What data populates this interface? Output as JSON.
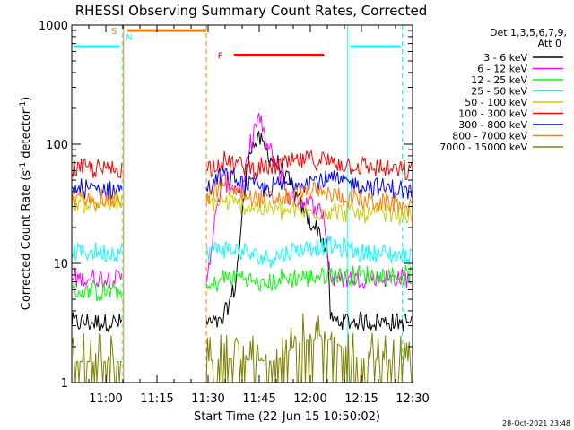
{
  "chart_data": {
    "type": "line",
    "title": "RHESSI Observing Summary Count Rates, Corrected",
    "xlabel": "Start Time (22-Jun-15 10:50:02)",
    "ylabel_main": "Corrected Count Rate (s",
    "ylabel_sup1": "-1",
    "ylabel_mid": " detector",
    "ylabel_sup2": "-1",
    "ylabel_end": ")",
    "yscale": "log",
    "ylim": [
      1,
      1000
    ],
    "xlim_min": [
      0,
      100
    ],
    "xticks": [
      {
        "t": 10,
        "label": "11:00"
      },
      {
        "t": 25,
        "label": "11:15"
      },
      {
        "t": 40,
        "label": "11:30"
      },
      {
        "t": 55,
        "label": "11:45"
      },
      {
        "t": 70,
        "label": "12:00"
      },
      {
        "t": 85,
        "label": "12:15"
      },
      {
        "t": 100,
        "label": "12:30"
      }
    ],
    "yticks": [
      {
        "v": 1,
        "label": "1"
      },
      {
        "v": 10,
        "label": "10"
      },
      {
        "v": 100,
        "label": "100"
      },
      {
        "v": 1000,
        "label": "1000"
      }
    ],
    "legend_title_1": "Det 1,3,5,6,7,9,",
    "legend_title_2": "Att 0",
    "series": [
      {
        "name": "3 - 6 keV",
        "color": "#000000",
        "values": [
          [
            0,
            3.2
          ],
          [
            14.8,
            3.2
          ],
          [
            39.5,
            3.2
          ],
          [
            44,
            3.1
          ],
          [
            48,
            6.5
          ],
          [
            52,
            90
          ],
          [
            55,
            110
          ],
          [
            58,
            80
          ],
          [
            62,
            60
          ],
          [
            66,
            35
          ],
          [
            70,
            22
          ],
          [
            73,
            18
          ],
          [
            75,
            12
          ],
          [
            76,
            3.3
          ],
          [
            100,
            3.2
          ]
        ]
      },
      {
        "name": "6 - 12 keV",
        "color": "#ff00ff",
        "values": [
          [
            0,
            7.5
          ],
          [
            14.8,
            7.5
          ],
          [
            39.5,
            7.5
          ],
          [
            44,
            50
          ],
          [
            47,
            45
          ],
          [
            50,
            40
          ],
          [
            53,
            120
          ],
          [
            55,
            170
          ],
          [
            57,
            100
          ],
          [
            60,
            70
          ],
          [
            64,
            35
          ],
          [
            68,
            33
          ],
          [
            72,
            30
          ],
          [
            74,
            25
          ],
          [
            76,
            7.5
          ],
          [
            100,
            7.5
          ]
        ]
      },
      {
        "name": "12 - 25 keV",
        "color": "#00ff00",
        "values": [
          [
            0,
            5.8
          ],
          [
            14.8,
            5.8
          ],
          [
            39.5,
            5.8
          ],
          [
            44,
            7.5
          ],
          [
            50,
            7.8
          ],
          [
            56,
            6.5
          ],
          [
            62,
            7.5
          ],
          [
            70,
            7.7
          ],
          [
            76,
            8
          ],
          [
            100,
            7.8
          ]
        ]
      },
      {
        "name": "25 - 50 keV",
        "color": "#00ffff",
        "values": [
          [
            0,
            12.5
          ],
          [
            14.8,
            12.5
          ],
          [
            39.5,
            12.5
          ],
          [
            44,
            13.5
          ],
          [
            50,
            12.5
          ],
          [
            56,
            11
          ],
          [
            62,
            12
          ],
          [
            70,
            14
          ],
          [
            76,
            14
          ],
          [
            84,
            12.5
          ],
          [
            100,
            11.5
          ]
        ]
      },
      {
        "name": "50 - 100 keV",
        "color": "#cccc00",
        "values": [
          [
            0,
            32
          ],
          [
            14.8,
            32
          ],
          [
            39.5,
            32
          ],
          [
            44,
            33
          ],
          [
            52,
            30
          ],
          [
            60,
            28
          ],
          [
            68,
            27
          ],
          [
            76,
            28
          ],
          [
            84,
            26
          ],
          [
            100,
            25
          ]
        ]
      },
      {
        "name": "100 - 300 keV",
        "color": "#ff0000",
        "values": [
          [
            0,
            62
          ],
          [
            14.8,
            62
          ],
          [
            39.5,
            62
          ],
          [
            44,
            72
          ],
          [
            50,
            66
          ],
          [
            56,
            62
          ],
          [
            62,
            68
          ],
          [
            70,
            75
          ],
          [
            76,
            72
          ],
          [
            84,
            66
          ],
          [
            100,
            58
          ]
        ]
      },
      {
        "name": "300 - 800 keV",
        "color": "#0000ff",
        "values": [
          [
            0,
            42
          ],
          [
            14.8,
            42
          ],
          [
            39.5,
            42
          ],
          [
            44,
            55
          ],
          [
            50,
            48
          ],
          [
            56,
            42
          ],
          [
            62,
            46
          ],
          [
            70,
            50
          ],
          [
            76,
            50
          ],
          [
            84,
            46
          ],
          [
            100,
            40
          ]
        ]
      },
      {
        "name": "800 - 7000 keV",
        "color": "#ff8000",
        "values": [
          [
            0,
            34
          ],
          [
            14.8,
            34
          ],
          [
            39.5,
            34
          ],
          [
            44,
            45
          ],
          [
            50,
            38
          ],
          [
            56,
            34
          ],
          [
            62,
            35
          ],
          [
            70,
            40
          ],
          [
            76,
            38
          ],
          [
            84,
            34
          ],
          [
            100,
            30
          ]
        ]
      },
      {
        "name": "7000 - 15000 keV",
        "color": "#808000",
        "values": [
          [
            0,
            1.5
          ],
          [
            14.8,
            1.5
          ],
          [
            39.5,
            1.5
          ],
          [
            44,
            1.6
          ],
          [
            60,
            1.5
          ],
          [
            68,
            2.3
          ],
          [
            76,
            2.3
          ],
          [
            84,
            1.6
          ],
          [
            100,
            1.5
          ]
        ]
      }
    ],
    "flags": [
      {
        "label": "S",
        "color": "#ff8000",
        "t_start": 14.8,
        "t_end": 39.5,
        "level": 900
      },
      {
        "label": "N",
        "color": "#00ffff",
        "t_start": 14.8,
        "level": 900
      },
      {
        "label": "F",
        "color": "#ff0000",
        "t_start": 46,
        "t_end": 74,
        "level": 560
      }
    ],
    "markers": [
      {
        "t": 14.8,
        "color": "#00ffff",
        "style": "dashed"
      },
      {
        "t": 15.2,
        "color": "#ff8000",
        "style": "solid"
      },
      {
        "t": 39.5,
        "color": "#ff8000",
        "style": "dashed"
      },
      {
        "t": 81,
        "color": "#00ffff",
        "style": "solid"
      },
      {
        "t": 97,
        "color": "#00ffff",
        "style": "dashed"
      }
    ],
    "cyan_bars": [
      {
        "t_start": 0,
        "t_end": 14.5,
        "level": 660
      },
      {
        "t_start": 81,
        "t_end": 97,
        "level": 660
      }
    ],
    "timestamp": "28-Oct-2021 23:48"
  }
}
